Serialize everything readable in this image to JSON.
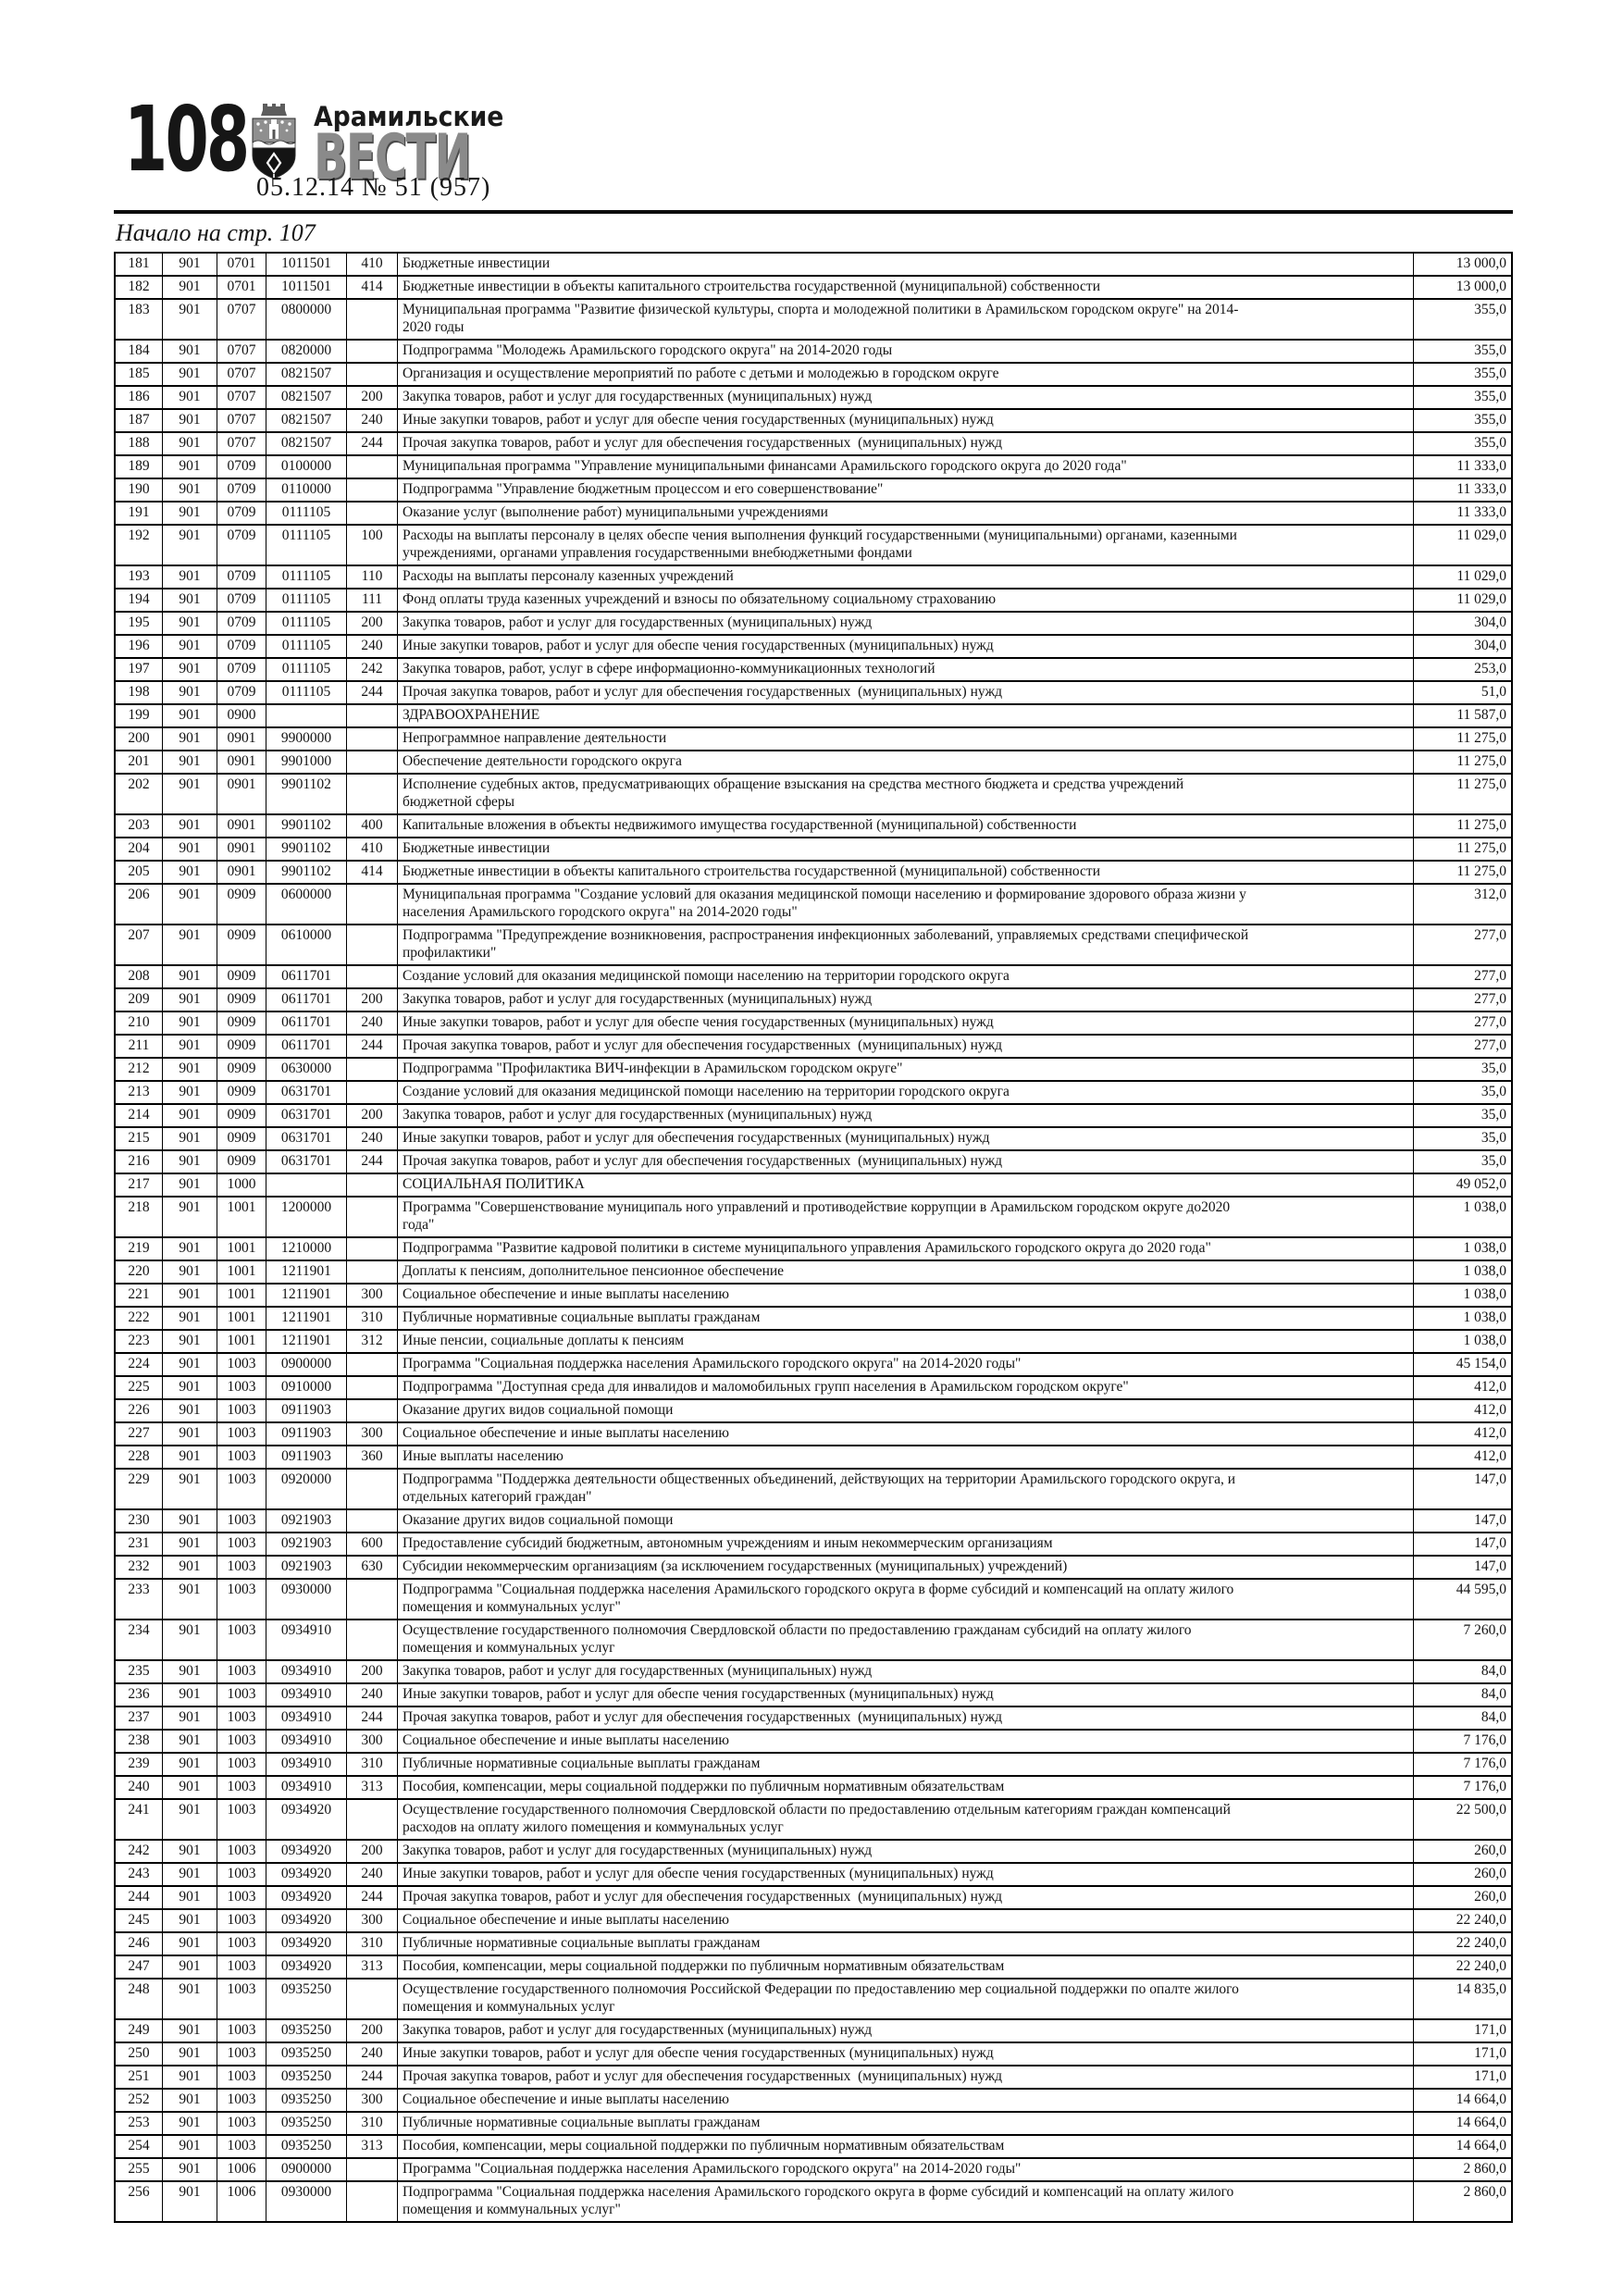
{
  "header": {
    "page_number": "108",
    "newspaper_name_line1": "Арамильские",
    "newspaper_name_line2": "ВЕСТИ",
    "issue_info": "05.12.14   № 51 (957)",
    "continuation_note": "Начало на стр. 107",
    "coat_of_arms_icon": "aramil-city-coat-of-arms",
    "colors": {
      "masthead_grey": "#8a8a8a",
      "ink": "#161616"
    }
  },
  "table": {
    "rows": [
      [
        "181",
        "901",
        "0701",
        "1011501",
        "410",
        "Бюджетные инвестиции",
        "13 000,0"
      ],
      [
        "182",
        "901",
        "0701",
        "1011501",
        "414",
        "Бюджетные инвестиции в объекты капитального строительства государственной (муниципальной) собственности",
        "13 000,0"
      ],
      [
        "183",
        "901",
        "0707",
        "0800000",
        "",
        "Муниципальная программа \"Развитие физической культуры, спорта и молодежной политики в Арамильском городском округе\" на 2014-\n2020 годы",
        "355,0"
      ],
      [
        "184",
        "901",
        "0707",
        "0820000",
        "",
        "Подпрограмма \"Молодежь Арамильского городского округа\" на 2014-2020 годы",
        "355,0"
      ],
      [
        "185",
        "901",
        "0707",
        "0821507",
        "",
        "Организация и осуществление мероприятий по работе с детьми и молодежью в городском округе",
        "355,0"
      ],
      [
        "186",
        "901",
        "0707",
        "0821507",
        "200",
        "Закупка товаров, работ и услуг для государственных (муниципальных) нужд",
        "355,0"
      ],
      [
        "187",
        "901",
        "0707",
        "0821507",
        "240",
        "Иные закупки товаров, работ и услуг для обеспе чения государственных (муниципальных) нужд",
        "355,0"
      ],
      [
        "188",
        "901",
        "0707",
        "0821507",
        "244",
        "Прочая закупка товаров, работ и услуг для обеспечения государственных  (муниципальных) нужд",
        "355,0"
      ],
      [
        "189",
        "901",
        "0709",
        "0100000",
        "",
        "Муниципальная программа \"Управление муниципальными финансами Арамильского городского округа до 2020 года\"",
        "11 333,0"
      ],
      [
        "190",
        "901",
        "0709",
        "0110000",
        "",
        "Подпрограмма \"Управление бюджетным процессом и его совершенствование\"",
        "11 333,0"
      ],
      [
        "191",
        "901",
        "0709",
        "0111105",
        "",
        "Оказание услуг (выполнение работ) муниципальными учреждениями",
        "11 333,0"
      ],
      [
        "192",
        "901",
        "0709",
        "0111105",
        "100",
        "Расходы на выплаты персоналу в целях обеспе чения выполнения функций государственными (муниципальными) органами, казенными\nучреждениями, органами управления государственными внебюджетными фондами",
        "11 029,0"
      ],
      [
        "193",
        "901",
        "0709",
        "0111105",
        "110",
        "Расходы на выплаты персоналу казенных учреждений",
        "11 029,0"
      ],
      [
        "194",
        "901",
        "0709",
        "0111105",
        "111",
        "Фонд оплаты труда казенных учреждений и взносы по обязательному социальному страхованию",
        "11 029,0"
      ],
      [
        "195",
        "901",
        "0709",
        "0111105",
        "200",
        "Закупка товаров, работ и услуг для государственных (муниципальных) нужд",
        "304,0"
      ],
      [
        "196",
        "901",
        "0709",
        "0111105",
        "240",
        "Иные закупки товаров, работ и услуг для обеспе чения государственных (муниципальных) нужд",
        "304,0"
      ],
      [
        "197",
        "901",
        "0709",
        "0111105",
        "242",
        "Закупка товаров, работ, услуг в сфере информационно-коммуникационных технологий",
        "253,0"
      ],
      [
        "198",
        "901",
        "0709",
        "0111105",
        "244",
        "Прочая закупка товаров, работ и услуг для обеспечения государственных  (муниципальных) нужд",
        "51,0"
      ],
      [
        "199",
        "901",
        "0900",
        "",
        "",
        "ЗДРАВООХРАНЕНИЕ",
        "11 587,0"
      ],
      [
        "200",
        "901",
        "0901",
        "9900000",
        "",
        "Непрограммное направление деятельности",
        "11 275,0"
      ],
      [
        "201",
        "901",
        "0901",
        "9901000",
        "",
        "Обеспечение деятельности городского округа",
        "11 275,0"
      ],
      [
        "202",
        "901",
        "0901",
        "9901102",
        "",
        "Исполнение судебных актов, предусматривающих обращение взыскания на средства местного бюджета и средства учреждений\nбюджетной сферы",
        "11 275,0"
      ],
      [
        "203",
        "901",
        "0901",
        "9901102",
        "400",
        "Капитальные вложения в объекты недвижимого имущества государственной (муниципальной) собственности",
        "11 275,0"
      ],
      [
        "204",
        "901",
        "0901",
        "9901102",
        "410",
        "Бюджетные инвестиции",
        "11 275,0"
      ],
      [
        "205",
        "901",
        "0901",
        "9901102",
        "414",
        "Бюджетные инвестиции в объекты капитального строительства государственной (муниципальной) собственности",
        "11 275,0"
      ],
      [
        "206",
        "901",
        "0909",
        "0600000",
        "",
        "Муниципальная программа \"Создание условий для оказания медицинской помощи населению и формирование здорового образа жизни у\nнаселения Арамильского городского округа\" на 2014-2020 годы\"",
        "312,0"
      ],
      [
        "207",
        "901",
        "0909",
        "0610000",
        "",
        "Подпрограмма \"Предупреждение возникновения, распространения инфекционных заболеваний, управляемых средствами специфической\nпрофилактики\"",
        "277,0"
      ],
      [
        "208",
        "901",
        "0909",
        "0611701",
        "",
        "Создание условий для оказания медицинской помощи населению на территории городского округа",
        "277,0"
      ],
      [
        "209",
        "901",
        "0909",
        "0611701",
        "200",
        "Закупка товаров, работ и услуг для государственных (муниципальных) нужд",
        "277,0"
      ],
      [
        "210",
        "901",
        "0909",
        "0611701",
        "240",
        "Иные закупки товаров, работ и услуг для обеспе чения государственных (муниципальных) нужд",
        "277,0"
      ],
      [
        "211",
        "901",
        "0909",
        "0611701",
        "244",
        "Прочая закупка товаров, работ и услуг для обеспечения государственных  (муниципальных) нужд",
        "277,0"
      ],
      [
        "212",
        "901",
        "0909",
        "0630000",
        "",
        "Подпрограмма \"Профилактика ВИЧ-инфекции в Арамильском городском округе\"",
        "35,0"
      ],
      [
        "213",
        "901",
        "0909",
        "0631701",
        "",
        "Создание условий для оказания медицинской помощи населению на территории городского округа",
        "35,0"
      ],
      [
        "214",
        "901",
        "0909",
        "0631701",
        "200",
        "Закупка товаров, работ и услуг для государственных (муниципальных) нужд",
        "35,0"
      ],
      [
        "215",
        "901",
        "0909",
        "0631701",
        "240",
        "Иные закупки товаров, работ и услуг для обеспечения государственных (муниципальных) нужд",
        "35,0"
      ],
      [
        "216",
        "901",
        "0909",
        "0631701",
        "244",
        "Прочая закупка товаров, работ и услуг для обеспечения государственных  (муниципальных) нужд",
        "35,0"
      ],
      [
        "217",
        "901",
        "1000",
        "",
        "",
        "СОЦИАЛЬНАЯ ПОЛИТИКА",
        "49 052,0"
      ],
      [
        "218",
        "901",
        "1001",
        "1200000",
        "",
        "Программа \"Совершенствование муниципаль ного управлений и противодействие коррупции в Арамильском городском округе до2020\nгода\"",
        "1 038,0"
      ],
      [
        "219",
        "901",
        "1001",
        "1210000",
        "",
        "Подпрограмма \"Развитие кадровой политики в системе муниципального управления Арамильского городского округа до 2020 года\"",
        "1 038,0"
      ],
      [
        "220",
        "901",
        "1001",
        "1211901",
        "",
        "Доплаты к пенсиям, дополнительное пенсионное обеспечение",
        "1 038,0"
      ],
      [
        "221",
        "901",
        "1001",
        "1211901",
        "300",
        "Социальное обеспечение и иные выплаты населению",
        "1 038,0"
      ],
      [
        "222",
        "901",
        "1001",
        "1211901",
        "310",
        "Публичные нормативные социальные выплаты гражданам",
        "1 038,0"
      ],
      [
        "223",
        "901",
        "1001",
        "1211901",
        "312",
        "Иные пенсии, социальные доплаты к пенсиям",
        "1 038,0"
      ],
      [
        "224",
        "901",
        "1003",
        "0900000",
        "",
        "Программа \"Социальная поддержка населения Арамильского городского округа\" на 2014-2020 годы\"",
        "45 154,0"
      ],
      [
        "225",
        "901",
        "1003",
        "0910000",
        "",
        "Подпрограмма \"Доступная среда для инвалидов и маломобильных групп населения в Арамильском городском округе\"",
        "412,0"
      ],
      [
        "226",
        "901",
        "1003",
        "0911903",
        "",
        "Оказание других видов социальной помощи",
        "412,0"
      ],
      [
        "227",
        "901",
        "1003",
        "0911903",
        "300",
        "Социальное обеспечение и иные выплаты населению",
        "412,0"
      ],
      [
        "228",
        "901",
        "1003",
        "0911903",
        "360",
        "Иные выплаты населению",
        "412,0"
      ],
      [
        "229",
        "901",
        "1003",
        "0920000",
        "",
        "Подпрограмма \"Поддержка деятельности общественных объединений, действующих на территории Арамильского городского округа, и\nотдельных категорий граждан\"",
        "147,0"
      ],
      [
        "230",
        "901",
        "1003",
        "0921903",
        "",
        "Оказание других видов социальной помощи",
        "147,0"
      ],
      [
        "231",
        "901",
        "1003",
        "0921903",
        "600",
        "Предоставление субсидий бюджетным, автономным учреждениям и иным некоммерческим организациям",
        "147,0"
      ],
      [
        "232",
        "901",
        "1003",
        "0921903",
        "630",
        "Субсидии некоммерческим организациям (за исключением государственных (муниципальных) учреждений)",
        "147,0"
      ],
      [
        "233",
        "901",
        "1003",
        "0930000",
        "",
        "Подпрограмма \"Социальная поддержка населения Арамильского городского округа в форме субсидий и компенсаций на оплату жилого\nпомещения и коммунальных услуг\"",
        "44 595,0"
      ],
      [
        "234",
        "901",
        "1003",
        "0934910",
        "",
        "Осуществление государственного полномочия Свердловской области по предоставлению гражданам субсидий на оплату жилого\nпомещения и коммунальных услуг",
        "7 260,0"
      ],
      [
        "235",
        "901",
        "1003",
        "0934910",
        "200",
        "Закупка товаров, работ и услуг для государственных (муниципальных) нужд",
        "84,0"
      ],
      [
        "236",
        "901",
        "1003",
        "0934910",
        "240",
        "Иные закупки товаров, работ и услуг для обеспе чения государственных (муниципальных) нужд",
        "84,0"
      ],
      [
        "237",
        "901",
        "1003",
        "0934910",
        "244",
        "Прочая закупка товаров, работ и услуг для обеспечения государственных  (муниципальных) нужд",
        "84,0"
      ],
      [
        "238",
        "901",
        "1003",
        "0934910",
        "300",
        "Социальное обеспечение и иные выплаты населению",
        "7 176,0"
      ],
      [
        "239",
        "901",
        "1003",
        "0934910",
        "310",
        "Публичные нормативные социальные выплаты гражданам",
        "7 176,0"
      ],
      [
        "240",
        "901",
        "1003",
        "0934910",
        "313",
        "Пособия, компенсации, меры социальной поддержки по публичным нормативным обязательствам",
        "7 176,0"
      ],
      [
        "241",
        "901",
        "1003",
        "0934920",
        "",
        "Осуществление государственного полномочия Свердловской области по предоставлению отдельным категориям граждан компенсаций\nрасходов на оплату жилого помещения и коммунальных услуг",
        "22 500,0"
      ],
      [
        "242",
        "901",
        "1003",
        "0934920",
        "200",
        "Закупка товаров, работ и услуг для государственных (муниципальных) нужд",
        "260,0"
      ],
      [
        "243",
        "901",
        "1003",
        "0934920",
        "240",
        "Иные закупки товаров, работ и услуг для обеспе чения государственных (муниципальных) нужд",
        "260,0"
      ],
      [
        "244",
        "901",
        "1003",
        "0934920",
        "244",
        "Прочая закупка товаров, работ и услуг для обеспечения государственных  (муниципальных) нужд",
        "260,0"
      ],
      [
        "245",
        "901",
        "1003",
        "0934920",
        "300",
        "Социальное обеспечение и иные выплаты населению",
        "22 240,0"
      ],
      [
        "246",
        "901",
        "1003",
        "0934920",
        "310",
        "Публичные нормативные социальные выплаты гражданам",
        "22 240,0"
      ],
      [
        "247",
        "901",
        "1003",
        "0934920",
        "313",
        "Пособия, компенсации, меры социальной поддержки по публичным нормативным обязательствам",
        "22 240,0"
      ],
      [
        "248",
        "901",
        "1003",
        "0935250",
        "",
        "Осуществление государственного полномочия Российской Федерации по предоставлению мер социальной поддержки по опалте жилого\nпомещения и коммунальных услуг",
        "14 835,0"
      ],
      [
        "249",
        "901",
        "1003",
        "0935250",
        "200",
        "Закупка товаров, работ и услуг для государственных (муниципальных) нужд",
        "171,0"
      ],
      [
        "250",
        "901",
        "1003",
        "0935250",
        "240",
        "Иные закупки товаров, работ и услуг для обеспе чения государственных (муниципальных) нужд",
        "171,0"
      ],
      [
        "251",
        "901",
        "1003",
        "0935250",
        "244",
        "Прочая закупка товаров, работ и услуг для обеспечения государственных  (муниципальных) нужд",
        "171,0"
      ],
      [
        "252",
        "901",
        "1003",
        "0935250",
        "300",
        "Социальное обеспечение и иные выплаты населению",
        "14 664,0"
      ],
      [
        "253",
        "901",
        "1003",
        "0935250",
        "310",
        "Публичные нормативные социальные выплаты гражданам",
        "14 664,0"
      ],
      [
        "254",
        "901",
        "1003",
        "0935250",
        "313",
        "Пособия, компенсации, меры социальной поддержки по публичным нормативным обязательствам",
        "14 664,0"
      ],
      [
        "255",
        "901",
        "1006",
        "0900000",
        "",
        "Программа \"Социальная поддержка населения Арамильского городского округа\" на 2014-2020 годы\"",
        "2 860,0"
      ],
      [
        "256",
        "901",
        "1006",
        "0930000",
        "",
        "Подпрограмма \"Социальная поддержка населения Арамильского городского округа в форме субсидий и компенсаций на оплату жилого\nпомещения и коммунальных услуг\"",
        "2 860,0"
      ]
    ]
  }
}
